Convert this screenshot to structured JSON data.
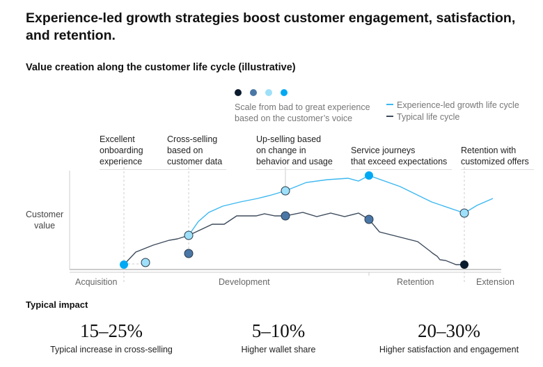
{
  "title": "Experience-led growth strategies boost customer engagement, satisfaction, and retention.",
  "subtitle": "Value creation along the customer life cycle (illustrative)",
  "legend": {
    "scale_colors": [
      "#0b1b2e",
      "#4a77a6",
      "#9ee0f9",
      "#00a9f4"
    ],
    "scale_text_1": "Scale from bad to great experience",
    "scale_text_2": "based on the customer’s voice",
    "series": [
      {
        "name": "Experience-led growth life cycle",
        "color": "#3bb8f0"
      },
      {
        "name": "Typical life cycle",
        "color": "#3d4b5c"
      }
    ]
  },
  "y_label_1": "Customer",
  "y_label_2": "value",
  "annotations": [
    {
      "l1": "Excellent",
      "l2": "onboarding",
      "l3": "experience"
    },
    {
      "l1": "Cross-selling",
      "l2": "based on",
      "l3": "customer data"
    },
    {
      "l1": "Up-selling based",
      "l2": "on change in",
      "l3": "behavior and usage"
    },
    {
      "l1": "Service journeys",
      "l2": "that exceed expectations"
    },
    {
      "l1": "Retention with",
      "l2": "customized offers"
    }
  ],
  "stages": [
    "Acquisition",
    "Development",
    "Retention",
    "Extension"
  ],
  "impact_title": "Typical impact",
  "impacts": [
    {
      "value": "15–25%",
      "label": "Typical increase in cross-selling"
    },
    {
      "value": "5–10%",
      "label": "Higher wallet share"
    },
    {
      "value": "20–30%",
      "label": "Higher satisfaction and engagement"
    }
  ]
}
